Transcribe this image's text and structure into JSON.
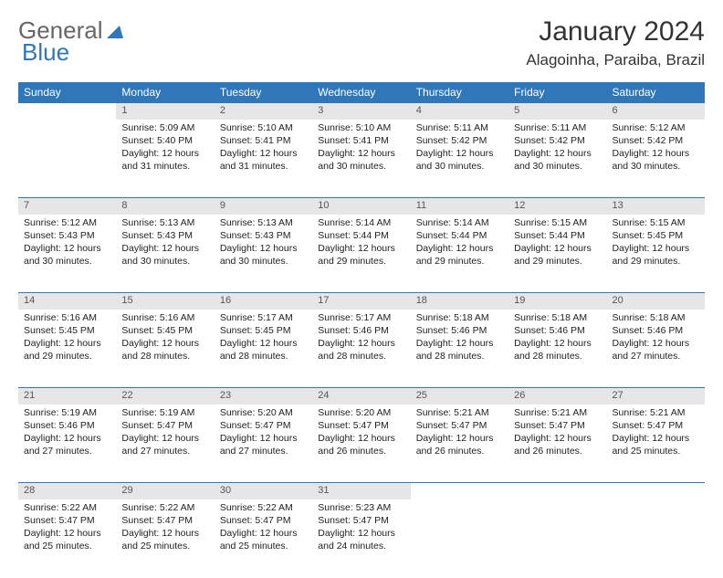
{
  "logo": {
    "text1": "General",
    "text2": "Blue"
  },
  "title": "January 2024",
  "location": "Alagoinha, Paraiba, Brazil",
  "colors": {
    "header_bg": "#2f77b8",
    "header_text": "#ffffff",
    "daynum_bg": "#e6e6e6",
    "border": "#2f77b8"
  },
  "weekdays": [
    "Sunday",
    "Monday",
    "Tuesday",
    "Wednesday",
    "Thursday",
    "Friday",
    "Saturday"
  ],
  "weeks": [
    [
      null,
      {
        "n": "1",
        "sr": "Sunrise: 5:09 AM",
        "ss": "Sunset: 5:40 PM",
        "dl": "Daylight: 12 hours and 31 minutes."
      },
      {
        "n": "2",
        "sr": "Sunrise: 5:10 AM",
        "ss": "Sunset: 5:41 PM",
        "dl": "Daylight: 12 hours and 31 minutes."
      },
      {
        "n": "3",
        "sr": "Sunrise: 5:10 AM",
        "ss": "Sunset: 5:41 PM",
        "dl": "Daylight: 12 hours and 30 minutes."
      },
      {
        "n": "4",
        "sr": "Sunrise: 5:11 AM",
        "ss": "Sunset: 5:42 PM",
        "dl": "Daylight: 12 hours and 30 minutes."
      },
      {
        "n": "5",
        "sr": "Sunrise: 5:11 AM",
        "ss": "Sunset: 5:42 PM",
        "dl": "Daylight: 12 hours and 30 minutes."
      },
      {
        "n": "6",
        "sr": "Sunrise: 5:12 AM",
        "ss": "Sunset: 5:42 PM",
        "dl": "Daylight: 12 hours and 30 minutes."
      }
    ],
    [
      {
        "n": "7",
        "sr": "Sunrise: 5:12 AM",
        "ss": "Sunset: 5:43 PM",
        "dl": "Daylight: 12 hours and 30 minutes."
      },
      {
        "n": "8",
        "sr": "Sunrise: 5:13 AM",
        "ss": "Sunset: 5:43 PM",
        "dl": "Daylight: 12 hours and 30 minutes."
      },
      {
        "n": "9",
        "sr": "Sunrise: 5:13 AM",
        "ss": "Sunset: 5:43 PM",
        "dl": "Daylight: 12 hours and 30 minutes."
      },
      {
        "n": "10",
        "sr": "Sunrise: 5:14 AM",
        "ss": "Sunset: 5:44 PM",
        "dl": "Daylight: 12 hours and 29 minutes."
      },
      {
        "n": "11",
        "sr": "Sunrise: 5:14 AM",
        "ss": "Sunset: 5:44 PM",
        "dl": "Daylight: 12 hours and 29 minutes."
      },
      {
        "n": "12",
        "sr": "Sunrise: 5:15 AM",
        "ss": "Sunset: 5:44 PM",
        "dl": "Daylight: 12 hours and 29 minutes."
      },
      {
        "n": "13",
        "sr": "Sunrise: 5:15 AM",
        "ss": "Sunset: 5:45 PM",
        "dl": "Daylight: 12 hours and 29 minutes."
      }
    ],
    [
      {
        "n": "14",
        "sr": "Sunrise: 5:16 AM",
        "ss": "Sunset: 5:45 PM",
        "dl": "Daylight: 12 hours and 29 minutes."
      },
      {
        "n": "15",
        "sr": "Sunrise: 5:16 AM",
        "ss": "Sunset: 5:45 PM",
        "dl": "Daylight: 12 hours and 28 minutes."
      },
      {
        "n": "16",
        "sr": "Sunrise: 5:17 AM",
        "ss": "Sunset: 5:45 PM",
        "dl": "Daylight: 12 hours and 28 minutes."
      },
      {
        "n": "17",
        "sr": "Sunrise: 5:17 AM",
        "ss": "Sunset: 5:46 PM",
        "dl": "Daylight: 12 hours and 28 minutes."
      },
      {
        "n": "18",
        "sr": "Sunrise: 5:18 AM",
        "ss": "Sunset: 5:46 PM",
        "dl": "Daylight: 12 hours and 28 minutes."
      },
      {
        "n": "19",
        "sr": "Sunrise: 5:18 AM",
        "ss": "Sunset: 5:46 PM",
        "dl": "Daylight: 12 hours and 28 minutes."
      },
      {
        "n": "20",
        "sr": "Sunrise: 5:18 AM",
        "ss": "Sunset: 5:46 PM",
        "dl": "Daylight: 12 hours and 27 minutes."
      }
    ],
    [
      {
        "n": "21",
        "sr": "Sunrise: 5:19 AM",
        "ss": "Sunset: 5:46 PM",
        "dl": "Daylight: 12 hours and 27 minutes."
      },
      {
        "n": "22",
        "sr": "Sunrise: 5:19 AM",
        "ss": "Sunset: 5:47 PM",
        "dl": "Daylight: 12 hours and 27 minutes."
      },
      {
        "n": "23",
        "sr": "Sunrise: 5:20 AM",
        "ss": "Sunset: 5:47 PM",
        "dl": "Daylight: 12 hours and 27 minutes."
      },
      {
        "n": "24",
        "sr": "Sunrise: 5:20 AM",
        "ss": "Sunset: 5:47 PM",
        "dl": "Daylight: 12 hours and 26 minutes."
      },
      {
        "n": "25",
        "sr": "Sunrise: 5:21 AM",
        "ss": "Sunset: 5:47 PM",
        "dl": "Daylight: 12 hours and 26 minutes."
      },
      {
        "n": "26",
        "sr": "Sunrise: 5:21 AM",
        "ss": "Sunset: 5:47 PM",
        "dl": "Daylight: 12 hours and 26 minutes."
      },
      {
        "n": "27",
        "sr": "Sunrise: 5:21 AM",
        "ss": "Sunset: 5:47 PM",
        "dl": "Daylight: 12 hours and 25 minutes."
      }
    ],
    [
      {
        "n": "28",
        "sr": "Sunrise: 5:22 AM",
        "ss": "Sunset: 5:47 PM",
        "dl": "Daylight: 12 hours and 25 minutes."
      },
      {
        "n": "29",
        "sr": "Sunrise: 5:22 AM",
        "ss": "Sunset: 5:47 PM",
        "dl": "Daylight: 12 hours and 25 minutes."
      },
      {
        "n": "30",
        "sr": "Sunrise: 5:22 AM",
        "ss": "Sunset: 5:47 PM",
        "dl": "Daylight: 12 hours and 25 minutes."
      },
      {
        "n": "31",
        "sr": "Sunrise: 5:23 AM",
        "ss": "Sunset: 5:47 PM",
        "dl": "Daylight: 12 hours and 24 minutes."
      },
      null,
      null,
      null
    ]
  ]
}
